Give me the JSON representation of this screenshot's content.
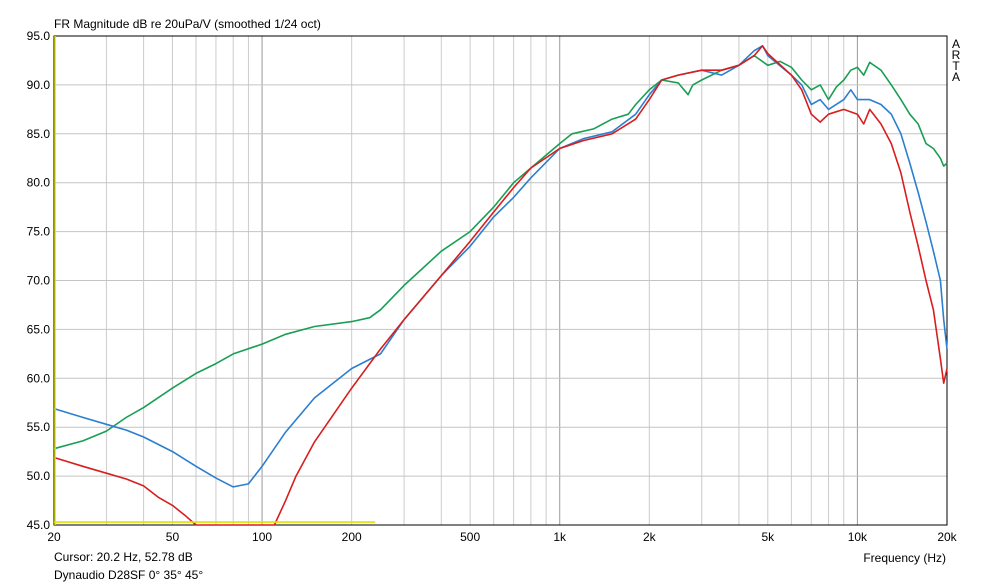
{
  "chart_data": {
    "type": "line",
    "title": "FR Magnitude dB re 20uPa/V (smoothed 1/24 oct)",
    "xlabel": "Frequency (Hz)",
    "ylabel": "",
    "x_scale": "log",
    "xlim": [
      20,
      20000
    ],
    "ylim": [
      45,
      95
    ],
    "grid": true,
    "x_ticks": [
      20,
      50,
      100,
      200,
      500,
      1000,
      2000,
      5000,
      10000,
      20000
    ],
    "x_tick_labels": [
      "20",
      "50",
      "100",
      "200",
      "500",
      "1k",
      "2k",
      "5k",
      "10k",
      "20k"
    ],
    "y_ticks": [
      45,
      50,
      55,
      60,
      65,
      70,
      75,
      80,
      85,
      90,
      95
    ],
    "y_tick_labels": [
      "45.0",
      "50.0",
      "55.0",
      "60.0",
      "65.0",
      "70.0",
      "75.0",
      "80.0",
      "85.0",
      "90.0",
      "95.0"
    ],
    "watermark": [
      "A",
      "R",
      "T",
      "A"
    ],
    "series": [
      {
        "color": "#1a9e55",
        "points": [
          [
            20,
            52.8
          ],
          [
            25,
            53.6
          ],
          [
            30,
            54.6
          ],
          [
            35,
            56
          ],
          [
            40,
            57
          ],
          [
            50,
            59
          ],
          [
            60,
            60.5
          ],
          [
            70,
            61.5
          ],
          [
            80,
            62.5
          ],
          [
            100,
            63.5
          ],
          [
            120,
            64.5
          ],
          [
            150,
            65.3
          ],
          [
            200,
            65.8
          ],
          [
            230,
            66.2
          ],
          [
            250,
            67
          ],
          [
            300,
            69.5
          ],
          [
            400,
            73
          ],
          [
            500,
            75
          ],
          [
            600,
            77.5
          ],
          [
            700,
            80
          ],
          [
            800,
            81.5
          ],
          [
            1000,
            84
          ],
          [
            1100,
            85
          ],
          [
            1300,
            85.5
          ],
          [
            1500,
            86.5
          ],
          [
            1700,
            87
          ],
          [
            1800,
            88
          ],
          [
            2000,
            89.5
          ],
          [
            2200,
            90.5
          ],
          [
            2500,
            90.2
          ],
          [
            2700,
            89
          ],
          [
            2800,
            90
          ],
          [
            3000,
            90.5
          ],
          [
            3500,
            91.5
          ],
          [
            4000,
            92
          ],
          [
            4500,
            93
          ],
          [
            5000,
            92
          ],
          [
            5500,
            92.4
          ],
          [
            6000,
            91.8
          ],
          [
            6500,
            90.5
          ],
          [
            7000,
            89.5
          ],
          [
            7500,
            90
          ],
          [
            8000,
            88.5
          ],
          [
            8500,
            89.8
          ],
          [
            9000,
            90.5
          ],
          [
            9500,
            91.5
          ],
          [
            10000,
            91.8
          ],
          [
            10500,
            91
          ],
          [
            11000,
            92.3
          ],
          [
            12000,
            91.5
          ],
          [
            13000,
            90
          ],
          [
            14000,
            88.5
          ],
          [
            15000,
            87
          ],
          [
            16000,
            86
          ],
          [
            17000,
            84
          ],
          [
            18000,
            83.5
          ],
          [
            19000,
            82.5
          ],
          [
            19500,
            81.7
          ],
          [
            20000,
            82
          ]
        ]
      },
      {
        "color": "#2b7fd0",
        "points": [
          [
            20,
            56.9
          ],
          [
            25,
            56
          ],
          [
            30,
            55.3
          ],
          [
            35,
            54.7
          ],
          [
            40,
            54
          ],
          [
            50,
            52.5
          ],
          [
            60,
            51
          ],
          [
            70,
            49.8
          ],
          [
            80,
            48.9
          ],
          [
            90,
            49.2
          ],
          [
            100,
            51
          ],
          [
            120,
            54.5
          ],
          [
            150,
            58
          ],
          [
            200,
            61
          ],
          [
            250,
            62.5
          ],
          [
            300,
            66
          ],
          [
            400,
            70.5
          ],
          [
            500,
            73.5
          ],
          [
            600,
            76.5
          ],
          [
            700,
            78.5
          ],
          [
            800,
            80.5
          ],
          [
            1000,
            83.5
          ],
          [
            1200,
            84.5
          ],
          [
            1500,
            85.2
          ],
          [
            1800,
            87
          ],
          [
            2000,
            89
          ],
          [
            2200,
            90.5
          ],
          [
            2500,
            91
          ],
          [
            3000,
            91.5
          ],
          [
            3500,
            91
          ],
          [
            4000,
            92
          ],
          [
            4500,
            93.5
          ],
          [
            4800,
            94
          ],
          [
            5000,
            93
          ],
          [
            6000,
            91
          ],
          [
            6500,
            90
          ],
          [
            7000,
            88
          ],
          [
            7500,
            88.5
          ],
          [
            8000,
            87.5
          ],
          [
            9000,
            88.5
          ],
          [
            9500,
            89.5
          ],
          [
            10000,
            88.5
          ],
          [
            11000,
            88.5
          ],
          [
            12000,
            88
          ],
          [
            13000,
            87
          ],
          [
            14000,
            85
          ],
          [
            15000,
            82
          ],
          [
            16000,
            79
          ],
          [
            17000,
            76
          ],
          [
            18000,
            73
          ],
          [
            19000,
            70
          ],
          [
            19500,
            66
          ],
          [
            20000,
            63
          ]
        ]
      },
      {
        "color": "#d81e1e",
        "points": [
          [
            20,
            51.9
          ],
          [
            25,
            51
          ],
          [
            30,
            50.3
          ],
          [
            35,
            49.7
          ],
          [
            40,
            49
          ],
          [
            45,
            47.8
          ],
          [
            50,
            47
          ],
          [
            55,
            46
          ],
          [
            60,
            45
          ],
          [
            110,
            45
          ],
          [
            120,
            47.5
          ],
          [
            130,
            50
          ],
          [
            150,
            53.5
          ],
          [
            200,
            59
          ],
          [
            250,
            63
          ],
          [
            300,
            66
          ],
          [
            400,
            70.5
          ],
          [
            500,
            74
          ],
          [
            600,
            77
          ],
          [
            700,
            79.5
          ],
          [
            800,
            81.5
          ],
          [
            1000,
            83.5
          ],
          [
            1200,
            84.3
          ],
          [
            1500,
            85
          ],
          [
            1800,
            86.5
          ],
          [
            2000,
            88.5
          ],
          [
            2200,
            90.5
          ],
          [
            2500,
            91
          ],
          [
            3000,
            91.5
          ],
          [
            3500,
            91.5
          ],
          [
            4000,
            92
          ],
          [
            4500,
            93
          ],
          [
            4800,
            94
          ],
          [
            5000,
            93.2
          ],
          [
            6000,
            91
          ],
          [
            6500,
            89.5
          ],
          [
            7000,
            87
          ],
          [
            7500,
            86.2
          ],
          [
            8000,
            87
          ],
          [
            9000,
            87.5
          ],
          [
            10000,
            87
          ],
          [
            10500,
            86
          ],
          [
            11000,
            87.5
          ],
          [
            12000,
            86
          ],
          [
            13000,
            84
          ],
          [
            14000,
            81
          ],
          [
            15000,
            77
          ],
          [
            16000,
            73.5
          ],
          [
            17000,
            70
          ],
          [
            18000,
            67
          ],
          [
            19000,
            62
          ],
          [
            19500,
            59.5
          ],
          [
            20000,
            61
          ]
        ]
      },
      {
        "color": "#e0e000",
        "points": [
          [
            20,
            45.3
          ],
          [
            240,
            45.3
          ]
        ]
      }
    ]
  },
  "status": {
    "cursor": "Cursor: 20.2 Hz, 52.78 dB",
    "description": "Dynaudio D28SF 0° 35° 45°"
  }
}
